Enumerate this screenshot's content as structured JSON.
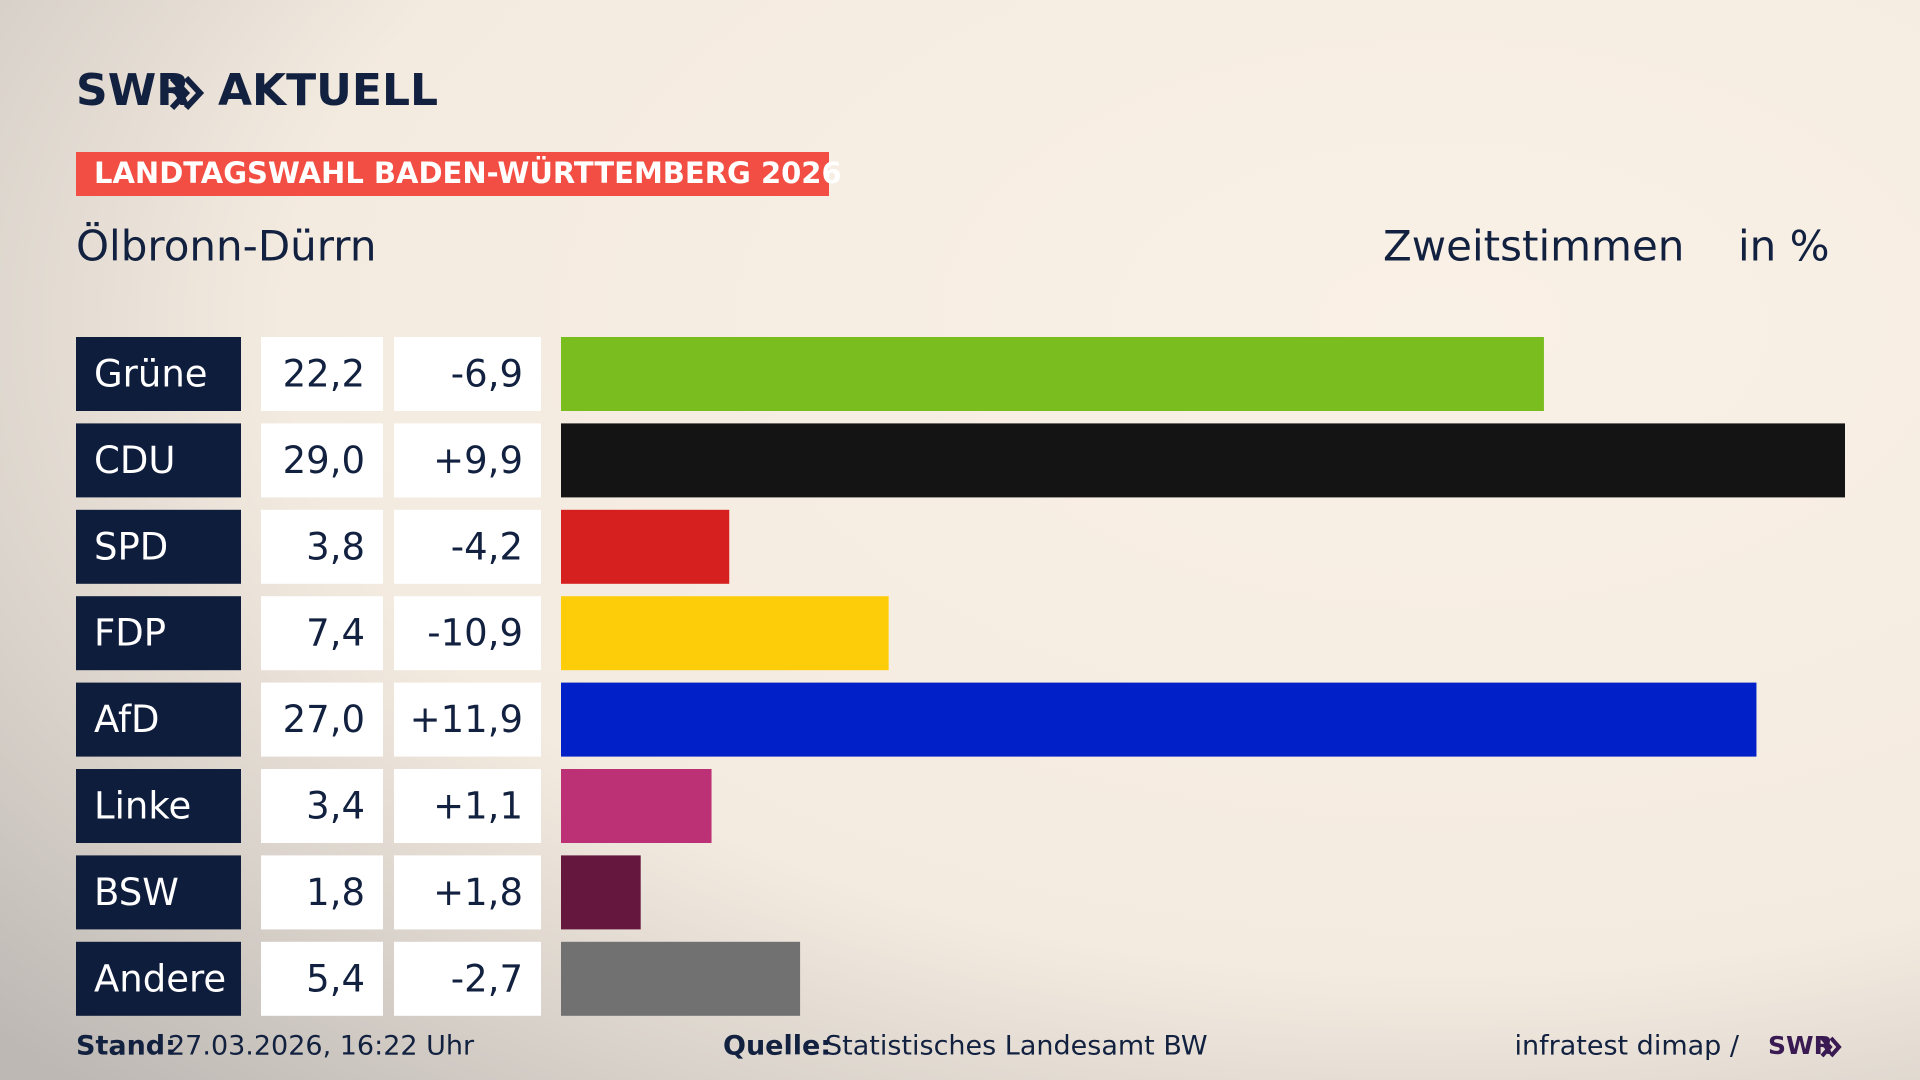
{
  "header": {
    "logo": "SWR",
    "logo_suffix": "AKTUELL",
    "banner": "LANDTAGSWAHL BADEN-WÜRTTEMBERG 2026",
    "subtitle": "Ölbronn-Dürrn",
    "measure": "Zweitstimmen",
    "unit": "in %"
  },
  "chart_data": {
    "type": "bar",
    "categories": [
      "Grüne",
      "CDU",
      "SPD",
      "FDP",
      "AfD",
      "Linke",
      "BSW",
      "Andere"
    ],
    "values": [
      22.2,
      29.0,
      3.8,
      7.4,
      27.0,
      3.4,
      1.8,
      5.4
    ],
    "value_labels": [
      "22,2",
      "29,0",
      "3,8",
      "7,4",
      "27,0",
      "3,4",
      "1,8",
      "5,4"
    ],
    "changes": [
      -6.9,
      9.9,
      -4.2,
      -10.9,
      11.9,
      1.1,
      1.8,
      -2.7
    ],
    "change_labels": [
      "-6,9",
      "+9,9",
      "-4,2",
      "-10,9",
      "+11,9",
      "+1,1",
      "+1,8",
      "-2,7"
    ],
    "colors": [
      "#7abd1e",
      "#141414",
      "#d6201f",
      "#fdcd0a",
      "#0120c8",
      "#bc3176",
      "#66173d",
      "#717171"
    ],
    "xlim": [
      0,
      29
    ]
  },
  "footer": {
    "stand_label": "Stand:",
    "stand": "27.03.2026, 16:22 Uhr",
    "source_label": "Quelle:",
    "source": "Statistisches Landesamt BW",
    "credit": "infratest dimap /",
    "credit_logo": "SWR"
  }
}
